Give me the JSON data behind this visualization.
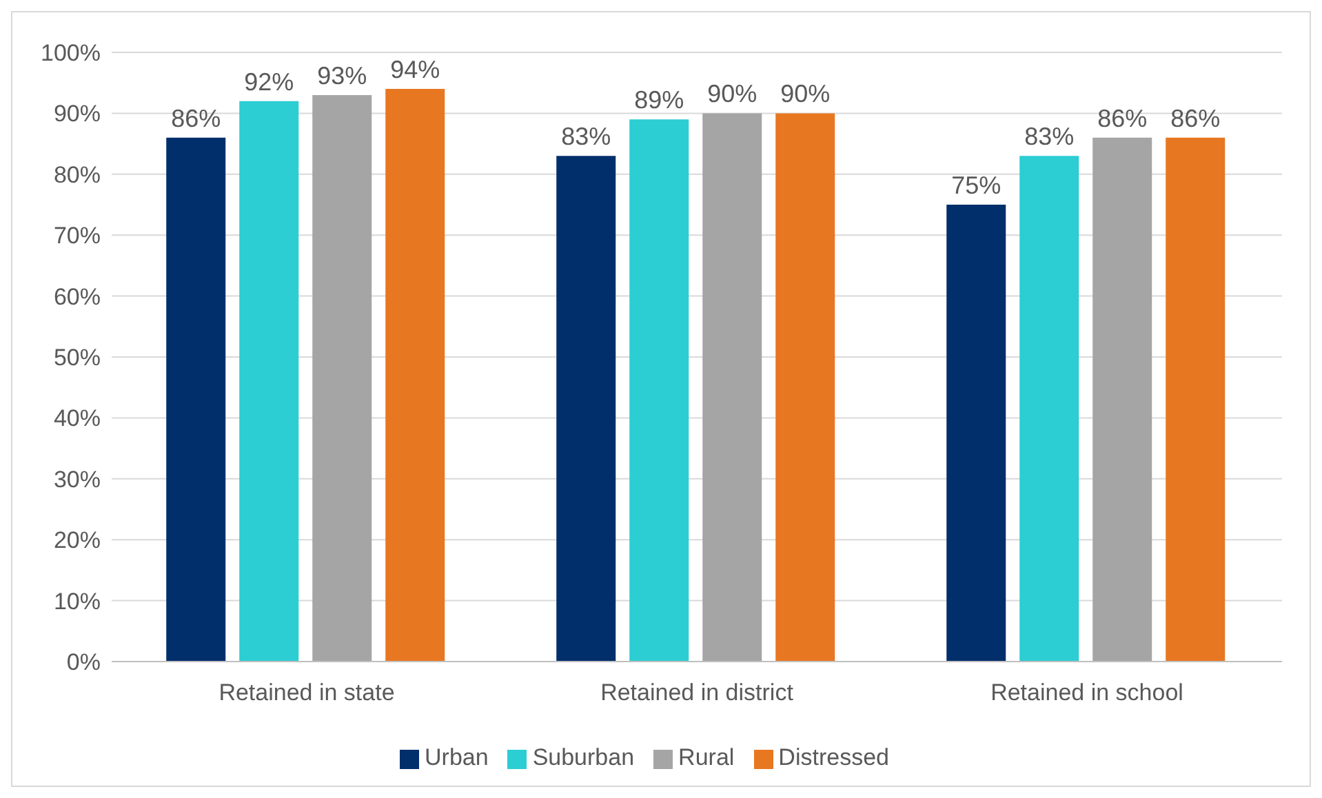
{
  "chart_data": {
    "type": "bar",
    "categories": [
      "Retained in state",
      "Retained in district",
      "Retained in school"
    ],
    "series": [
      {
        "name": "Urban",
        "color": "#002f6c",
        "values": [
          86,
          83,
          75
        ],
        "value_labels": [
          "86%",
          "83%",
          "75%"
        ]
      },
      {
        "name": "Suburban",
        "color": "#2ccdd3",
        "values": [
          92,
          89,
          83
        ],
        "value_labels": [
          "92%",
          "89%",
          "83%"
        ]
      },
      {
        "name": "Rural",
        "color": "#a5a5a5",
        "values": [
          93,
          90,
          86
        ],
        "value_labels": [
          "93%",
          "90%",
          "86%"
        ]
      },
      {
        "name": "Distressed",
        "color": "#e87722",
        "values": [
          94,
          90,
          86
        ],
        "value_labels": [
          "94%",
          "90%",
          "86%"
        ]
      }
    ],
    "ylim": [
      0,
      100
    ],
    "yticks": [
      {
        "value": 0,
        "label": "0%"
      },
      {
        "value": 10,
        "label": "10%"
      },
      {
        "value": 20,
        "label": "20%"
      },
      {
        "value": 30,
        "label": "30%"
      },
      {
        "value": 40,
        "label": "40%"
      },
      {
        "value": 50,
        "label": "50%"
      },
      {
        "value": 60,
        "label": "60%"
      },
      {
        "value": 70,
        "label": "70%"
      },
      {
        "value": 80,
        "label": "80%"
      },
      {
        "value": 90,
        "label": "90%"
      },
      {
        "value": 100,
        "label": "100%"
      }
    ],
    "grid": "y",
    "legend": "bottom"
  }
}
